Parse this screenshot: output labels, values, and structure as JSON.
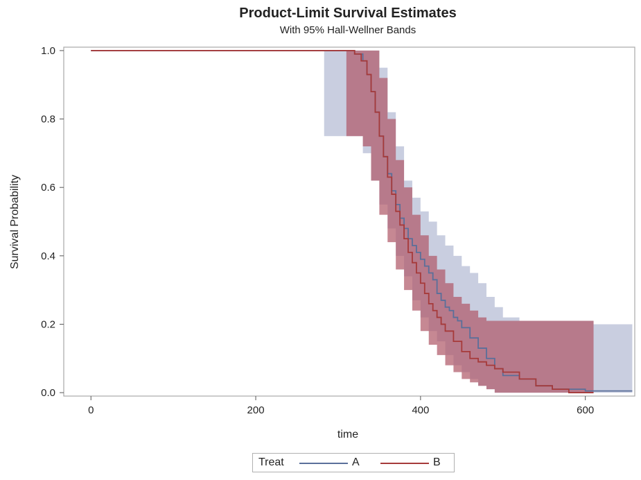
{
  "chart_data": {
    "type": "line",
    "title": "Product-Limit Survival Estimates",
    "subtitle": "With 95% Hall-Wellner Bands",
    "xlabel": "time",
    "ylabel": "Survival Probability",
    "xlim": [
      -33,
      660
    ],
    "ylim": [
      -0.01,
      1.01
    ],
    "xticks": [
      0,
      200,
      400,
      600
    ],
    "yticks": [
      0.0,
      0.2,
      0.4,
      0.6,
      0.8,
      1.0
    ],
    "ytick_labels": [
      "0.0",
      "0.2",
      "0.4",
      "0.6",
      "0.8",
      "1.0"
    ],
    "grid": false,
    "legend": {
      "title": "Treat",
      "position": "bottom"
    },
    "series": [
      {
        "name": "A",
        "color": "#5a6f9a",
        "band_color": "#c3c9dd",
        "step": true,
        "x": [
          0,
          320,
          330,
          335,
          340,
          345,
          350,
          355,
          360,
          365,
          370,
          375,
          380,
          385,
          390,
          395,
          400,
          405,
          410,
          415,
          420,
          425,
          430,
          435,
          440,
          445,
          450,
          460,
          470,
          480,
          490,
          500,
          520,
          540,
          560,
          580,
          600,
          657
        ],
        "y": [
          1.0,
          0.99,
          0.97,
          0.93,
          0.88,
          0.82,
          0.75,
          0.69,
          0.64,
          0.59,
          0.55,
          0.51,
          0.48,
          0.45,
          0.43,
          0.41,
          0.39,
          0.37,
          0.35,
          0.33,
          0.29,
          0.27,
          0.25,
          0.24,
          0.22,
          0.21,
          0.19,
          0.16,
          0.13,
          0.1,
          0.07,
          0.05,
          0.04,
          0.02,
          0.01,
          0.01,
          0.005,
          0.005
        ],
        "band_x": [
          283,
          300,
          320,
          330,
          340,
          350,
          360,
          370,
          380,
          390,
          400,
          410,
          420,
          430,
          440,
          450,
          460,
          470,
          480,
          490,
          500,
          520,
          540,
          560,
          580,
          600,
          610,
          657
        ],
        "band_lower": [
          0.75,
          0.75,
          0.75,
          0.7,
          0.62,
          0.55,
          0.48,
          0.4,
          0.34,
          0.27,
          0.22,
          0.18,
          0.15,
          0.11,
          0.08,
          0.06,
          0.04,
          0.02,
          0.01,
          0.0,
          0.0,
          0.0,
          0.0,
          0.0,
          0.0,
          0.0,
          0.0,
          0.0
        ],
        "band_upper": [
          1.0,
          1.0,
          1.0,
          1.0,
          1.0,
          0.95,
          0.82,
          0.72,
          0.62,
          0.57,
          0.53,
          0.5,
          0.46,
          0.43,
          0.4,
          0.37,
          0.35,
          0.32,
          0.28,
          0.25,
          0.22,
          0.21,
          0.21,
          0.21,
          0.21,
          0.21,
          0.2,
          0.2
        ]
      },
      {
        "name": "B",
        "color": "#a63a3a",
        "band_color": "#b05a69",
        "step": true,
        "x": [
          0,
          320,
          328,
          335,
          340,
          345,
          350,
          355,
          360,
          365,
          370,
          375,
          380,
          385,
          390,
          395,
          400,
          405,
          410,
          415,
          420,
          425,
          430,
          440,
          450,
          460,
          470,
          480,
          490,
          500,
          520,
          540,
          560,
          580,
          600,
          610
        ],
        "y": [
          1.0,
          0.99,
          0.97,
          0.93,
          0.88,
          0.82,
          0.75,
          0.69,
          0.63,
          0.58,
          0.53,
          0.49,
          0.45,
          0.41,
          0.38,
          0.35,
          0.32,
          0.29,
          0.26,
          0.24,
          0.22,
          0.2,
          0.18,
          0.15,
          0.12,
          0.1,
          0.09,
          0.08,
          0.07,
          0.06,
          0.04,
          0.02,
          0.01,
          0.0,
          0.0,
          0.0
        ],
        "band_x": [
          310,
          320,
          330,
          340,
          350,
          360,
          370,
          380,
          390,
          400,
          410,
          420,
          430,
          440,
          450,
          460,
          470,
          480,
          490,
          500,
          520,
          540,
          560,
          580,
          600,
          610
        ],
        "band_lower": [
          0.75,
          0.75,
          0.72,
          0.62,
          0.52,
          0.44,
          0.36,
          0.3,
          0.24,
          0.18,
          0.14,
          0.11,
          0.08,
          0.06,
          0.04,
          0.03,
          0.02,
          0.01,
          0.0,
          0.0,
          0.0,
          0.0,
          0.0,
          0.0,
          0.0,
          0.0
        ],
        "band_upper": [
          1.0,
          1.0,
          1.0,
          1.0,
          0.92,
          0.8,
          0.68,
          0.6,
          0.52,
          0.46,
          0.4,
          0.36,
          0.32,
          0.28,
          0.26,
          0.24,
          0.22,
          0.21,
          0.21,
          0.21,
          0.21,
          0.21,
          0.21,
          0.21,
          0.21,
          0.21
        ]
      }
    ]
  }
}
